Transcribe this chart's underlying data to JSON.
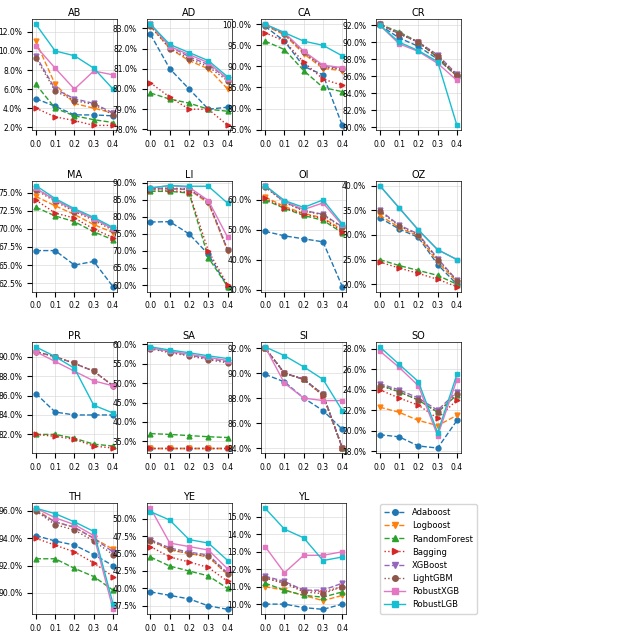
{
  "x": [
    0.0,
    0.1,
    0.2,
    0.3,
    0.4
  ],
  "subplots": {
    "AB": {
      "Adaboost": [
        0.05,
        0.042,
        0.033,
        0.033,
        0.032
      ],
      "Logboost": [
        0.11,
        0.065,
        0.045,
        0.04,
        0.035
      ],
      "RandomForest": [
        0.065,
        0.04,
        0.032,
        0.028,
        0.025
      ],
      "Bagging": [
        0.04,
        0.031,
        0.027,
        0.022,
        0.022
      ],
      "XGBoost": [
        0.095,
        0.06,
        0.05,
        0.045,
        0.035
      ],
      "LightGBM": [
        0.093,
        0.058,
        0.048,
        0.044,
        0.033
      ],
      "RobustXGB": [
        0.105,
        0.082,
        0.06,
        0.079,
        0.075
      ],
      "RobustLGB": [
        0.128,
        0.1,
        0.095,
        0.082,
        0.06
      ]
    },
    "AD": {
      "Adaboost": [
        0.827,
        0.81,
        0.8,
        0.79,
        0.791
      ],
      "Logboost": [
        0.831,
        0.82,
        0.814,
        0.81,
        0.8
      ],
      "RandomForest": [
        0.798,
        0.795,
        0.793,
        0.79,
        0.789
      ],
      "Bagging": [
        0.803,
        0.796,
        0.79,
        0.79,
        0.782
      ],
      "XGBoost": [
        0.832,
        0.821,
        0.816,
        0.812,
        0.805
      ],
      "LightGBM": [
        0.831,
        0.82,
        0.815,
        0.811,
        0.804
      ],
      "RobustXGB": [
        0.832,
        0.821,
        0.817,
        0.813,
        0.805
      ],
      "RobustLGB": [
        0.832,
        0.822,
        0.818,
        0.814,
        0.806
      ]
    },
    "CA": {
      "Adaboost": [
        0.995,
        0.96,
        0.9,
        0.88,
        0.76
      ],
      "Logboost": [
        0.997,
        0.975,
        0.93,
        0.895,
        0.89
      ],
      "RandomForest": [
        0.96,
        0.94,
        0.89,
        0.85,
        0.84
      ],
      "Bagging": [
        0.98,
        0.96,
        0.91,
        0.87,
        0.855
      ],
      "XGBoost": [
        0.999,
        0.978,
        0.935,
        0.9,
        0.895
      ],
      "LightGBM": [
        0.998,
        0.977,
        0.933,
        0.898,
        0.893
      ],
      "RobustXGB": [
        1.0,
        0.98,
        0.936,
        0.903,
        0.897
      ],
      "RobustLGB": [
        1.0,
        0.98,
        0.96,
        0.95,
        0.925
      ]
    },
    "CR": {
      "Adaboost": [
        0.92,
        0.905,
        0.895,
        0.88,
        0.86
      ],
      "Logboost": [
        0.921,
        0.91,
        0.9,
        0.882,
        0.86
      ],
      "RandomForest": [
        0.921,
        0.912,
        0.9,
        0.882,
        0.86
      ],
      "Bagging": [
        0.921,
        0.91,
        0.9,
        0.882,
        0.86
      ],
      "XGBoost": [
        0.921,
        0.91,
        0.9,
        0.885,
        0.862
      ],
      "LightGBM": [
        0.921,
        0.91,
        0.9,
        0.884,
        0.861
      ],
      "RobustXGB": [
        0.92,
        0.898,
        0.889,
        0.875,
        0.855
      ],
      "RobustLGB": [
        0.92,
        0.9,
        0.89,
        0.877,
        0.802
      ]
    },
    "MA": {
      "Adaboost": [
        0.67,
        0.67,
        0.65,
        0.655,
        0.62
      ],
      "Logboost": [
        0.745,
        0.732,
        0.72,
        0.706,
        0.695
      ],
      "RandomForest": [
        0.73,
        0.718,
        0.71,
        0.696,
        0.685
      ],
      "Bagging": [
        0.74,
        0.722,
        0.715,
        0.7,
        0.688
      ],
      "XGBoost": [
        0.756,
        0.74,
        0.726,
        0.714,
        0.7
      ],
      "LightGBM": [
        0.754,
        0.738,
        0.724,
        0.712,
        0.698
      ],
      "RobustXGB": [
        0.756,
        0.74,
        0.726,
        0.714,
        0.7
      ],
      "RobustLGB": [
        0.76,
        0.742,
        0.728,
        0.716,
        0.702
      ]
    },
    "LI": {
      "Adaboost": [
        0.785,
        0.786,
        0.75,
        0.69,
        0.595
      ],
      "Logboost": [
        0.883,
        0.883,
        0.88,
        0.84,
        0.7
      ],
      "RandomForest": [
        0.875,
        0.875,
        0.87,
        0.68,
        0.595
      ],
      "Bagging": [
        0.88,
        0.878,
        0.872,
        0.7,
        0.6
      ],
      "XGBoost": [
        0.883,
        0.883,
        0.88,
        0.845,
        0.703
      ],
      "LightGBM": [
        0.884,
        0.885,
        0.882,
        0.845,
        0.703
      ],
      "RobustXGB": [
        0.885,
        0.892,
        0.887,
        0.848,
        0.74
      ],
      "RobustLGB": [
        0.885,
        0.892,
        0.89,
        0.89,
        0.84
      ]
    },
    "OI": {
      "Adaboost": [
        0.495,
        0.48,
        0.47,
        0.46,
        0.31
      ],
      "Logboost": [
        0.61,
        0.578,
        0.555,
        0.54,
        0.5
      ],
      "RandomForest": [
        0.6,
        0.572,
        0.548,
        0.532,
        0.49
      ],
      "Bagging": [
        0.605,
        0.574,
        0.552,
        0.538,
        0.494
      ],
      "XGBoost": [
        0.645,
        0.593,
        0.565,
        0.552,
        0.51
      ],
      "LightGBM": [
        0.643,
        0.592,
        0.563,
        0.55,
        0.508
      ],
      "RobustXGB": [
        0.648,
        0.596,
        0.568,
        0.59,
        0.515
      ],
      "RobustLGB": [
        0.648,
        0.598,
        0.575,
        0.6,
        0.52
      ]
    },
    "OZ": {
      "Adaboost": [
        0.335,
        0.312,
        0.295,
        0.24,
        0.2
      ],
      "Logboost": [
        0.34,
        0.315,
        0.298,
        0.245,
        0.205
      ],
      "RandomForest": [
        0.25,
        0.238,
        0.228,
        0.218,
        0.2
      ],
      "Bagging": [
        0.245,
        0.233,
        0.222,
        0.21,
        0.195
      ],
      "XGBoost": [
        0.35,
        0.32,
        0.302,
        0.252,
        0.208
      ],
      "LightGBM": [
        0.348,
        0.318,
        0.3,
        0.25,
        0.207
      ],
      "RobustXGB": [
        0.4,
        0.355,
        0.31,
        0.27,
        0.25
      ],
      "RobustLGB": [
        0.4,
        0.355,
        0.31,
        0.27,
        0.25
      ]
    },
    "PR": {
      "Adaboost": [
        0.862,
        0.843,
        0.84,
        0.84,
        0.84
      ],
      "Logboost": [
        0.905,
        0.9,
        0.893,
        0.885,
        0.87
      ],
      "RandomForest": [
        0.82,
        0.82,
        0.816,
        0.81,
        0.808
      ],
      "Bagging": [
        0.82,
        0.818,
        0.815,
        0.808,
        0.806
      ],
      "XGBoost": [
        0.905,
        0.9,
        0.893,
        0.885,
        0.87
      ],
      "LightGBM": [
        0.905,
        0.9,
        0.893,
        0.885,
        0.87
      ],
      "RobustXGB": [
        0.905,
        0.895,
        0.885,
        0.875,
        0.87
      ],
      "RobustLGB": [
        0.91,
        0.9,
        0.888,
        0.85,
        0.842
      ]
    },
    "SA": {
      "Adaboost": [
        0.333,
        0.333,
        0.333,
        0.333,
        0.333
      ],
      "Logboost": [
        0.333,
        0.333,
        0.333,
        0.333,
        0.333
      ],
      "RandomForest": [
        0.37,
        0.368,
        0.365,
        0.362,
        0.36
      ],
      "Bagging": [
        0.333,
        0.333,
        0.333,
        0.333,
        0.333
      ],
      "XGBoost": [
        0.59,
        0.58,
        0.572,
        0.563,
        0.555
      ],
      "LightGBM": [
        0.588,
        0.578,
        0.57,
        0.56,
        0.552
      ],
      "RobustXGB": [
        0.59,
        0.582,
        0.574,
        0.566,
        0.558
      ],
      "RobustLGB": [
        0.593,
        0.585,
        0.578,
        0.57,
        0.563
      ]
    },
    "SI": {
      "Adaboost": [
        0.899,
        0.893,
        0.88,
        0.87,
        0.855
      ],
      "Logboost": [
        0.92,
        0.9,
        0.895,
        0.882,
        0.84
      ],
      "RandomForest": [
        0.92,
        0.9,
        0.895,
        0.883,
        0.84
      ],
      "Bagging": [
        0.92,
        0.9,
        0.895,
        0.882,
        0.84
      ],
      "XGBoost": [
        0.92,
        0.9,
        0.895,
        0.883,
        0.84
      ],
      "LightGBM": [
        0.92,
        0.9,
        0.895,
        0.883,
        0.84
      ],
      "RobustXGB": [
        0.921,
        0.892,
        0.88,
        0.878,
        0.878
      ],
      "RobustLGB": [
        0.921,
        0.914,
        0.905,
        0.895,
        0.87
      ]
    },
    "SO": {
      "Adaboost": [
        0.196,
        0.194,
        0.185,
        0.183,
        0.21
      ],
      "Logboost": [
        0.223,
        0.218,
        0.21,
        0.205,
        0.215
      ],
      "RandomForest": [
        0.245,
        0.238,
        0.23,
        0.218,
        0.235
      ],
      "Bagging": [
        0.24,
        0.232,
        0.225,
        0.212,
        0.23
      ],
      "XGBoost": [
        0.246,
        0.24,
        0.232,
        0.22,
        0.238
      ],
      "LightGBM": [
        0.244,
        0.238,
        0.23,
        0.218,
        0.236
      ],
      "RobustXGB": [
        0.278,
        0.262,
        0.244,
        0.195,
        0.25
      ],
      "RobustLGB": [
        0.282,
        0.265,
        0.248,
        0.198,
        0.255
      ]
    },
    "TH": {
      "Adaboost": [
        0.942,
        0.938,
        0.935,
        0.928,
        0.92
      ],
      "Logboost": [
        0.961,
        0.952,
        0.948,
        0.94,
        0.932
      ],
      "RandomForest": [
        0.925,
        0.925,
        0.918,
        0.912,
        0.902
      ],
      "Bagging": [
        0.94,
        0.935,
        0.93,
        0.922,
        0.912
      ],
      "XGBoost": [
        0.96,
        0.952,
        0.948,
        0.94,
        0.93
      ],
      "LightGBM": [
        0.96,
        0.95,
        0.946,
        0.938,
        0.928
      ],
      "RobustXGB": [
        0.962,
        0.955,
        0.95,
        0.942,
        0.888
      ],
      "RobustLGB": [
        0.962,
        0.958,
        0.952,
        0.945,
        0.892
      ]
    },
    "YE": {
      "Adaboost": [
        0.395,
        0.39,
        0.385,
        0.375,
        0.37
      ],
      "Logboost": [
        0.47,
        0.455,
        0.45,
        0.445,
        0.42
      ],
      "RandomForest": [
        0.445,
        0.432,
        0.425,
        0.418,
        0.4
      ],
      "Bagging": [
        0.46,
        0.445,
        0.438,
        0.43,
        0.41
      ],
      "XGBoost": [
        0.47,
        0.458,
        0.452,
        0.448,
        0.422
      ],
      "LightGBM": [
        0.468,
        0.456,
        0.45,
        0.446,
        0.42
      ],
      "RobustXGB": [
        0.515,
        0.465,
        0.46,
        0.455,
        0.428
      ],
      "RobustLGB": [
        0.51,
        0.498,
        0.47,
        0.465,
        0.44
      ]
    },
    "YL": {
      "Adaboost": [
        0.1,
        0.1,
        0.098,
        0.097,
        0.1
      ],
      "Logboost": [
        0.11,
        0.108,
        0.105,
        0.102,
        0.105
      ],
      "RandomForest": [
        0.112,
        0.108,
        0.105,
        0.104,
        0.107
      ],
      "Bagging": [
        0.115,
        0.112,
        0.108,
        0.107,
        0.11
      ],
      "XGBoost": [
        0.116,
        0.113,
        0.108,
        0.108,
        0.112
      ],
      "LightGBM": [
        0.115,
        0.112,
        0.107,
        0.106,
        0.11
      ],
      "RobustXGB": [
        0.133,
        0.118,
        0.128,
        0.128,
        0.13
      ],
      "RobustLGB": [
        0.155,
        0.143,
        0.138,
        0.125,
        0.127
      ]
    }
  },
  "subplot_order": [
    [
      "AB",
      "AD",
      "CA",
      "CR"
    ],
    [
      "MA",
      "LI",
      "OI",
      "OZ"
    ],
    [
      "PR",
      "SA",
      "SI",
      "SO"
    ],
    [
      "TH",
      "YE",
      "YL",
      null
    ]
  ],
  "colors": {
    "Adaboost": "#1f77b4",
    "Logboost": "#ff7f0e",
    "RandomForest": "#2ca02c",
    "Bagging": "#d62728",
    "XGBoost": "#9467bd",
    "LightGBM": "#8c564b",
    "RobustXGB": "#e377c2",
    "RobustLGB": "#17becf"
  },
  "markers": {
    "Adaboost": "o",
    "Logboost": "v",
    "RandomForest": "^",
    "Bagging": ">",
    "XGBoost": "v",
    "LightGBM": "o",
    "RobustXGB": "s",
    "RobustLGB": "s"
  },
  "linestyles": {
    "Adaboost": "--",
    "Logboost": "--",
    "RandomForest": "--",
    "Bagging": ":",
    "XGBoost": "--",
    "LightGBM": ":",
    "RobustXGB": "-",
    "RobustLGB": "-"
  }
}
